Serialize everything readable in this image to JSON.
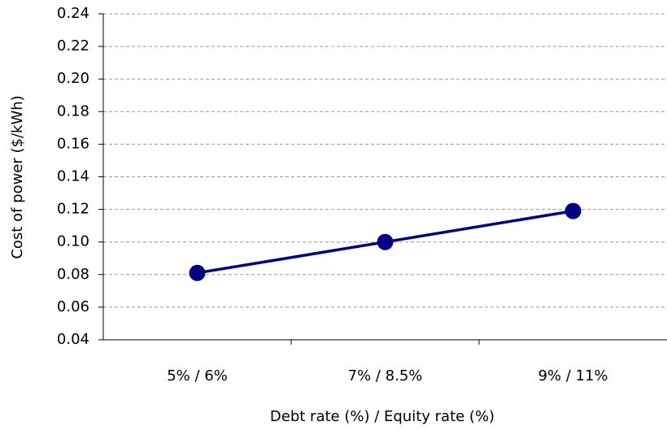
{
  "chart_data": {
    "type": "line",
    "x_label": "Debt rate (%) / Equity rate (%)",
    "y_label": "Cost of power ($/kWh)",
    "categories": [
      "5% / 6%",
      "7% / 8.5%",
      "9% / 11%"
    ],
    "series": [
      {
        "name": "Cost of power",
        "color": "#000080",
        "values": [
          0.081,
          0.1,
          0.119
        ]
      }
    ],
    "ylim": [
      0.04,
      0.24
    ],
    "yticks": [
      0.04,
      0.06,
      0.08,
      {
        "value": 0.1,
        "label": "0.10"
      },
      0.12,
      0.14,
      0.16,
      0.18,
      {
        "value": 0.2,
        "label": "0.20"
      },
      0.22,
      0.24
    ],
    "grid": true
  }
}
